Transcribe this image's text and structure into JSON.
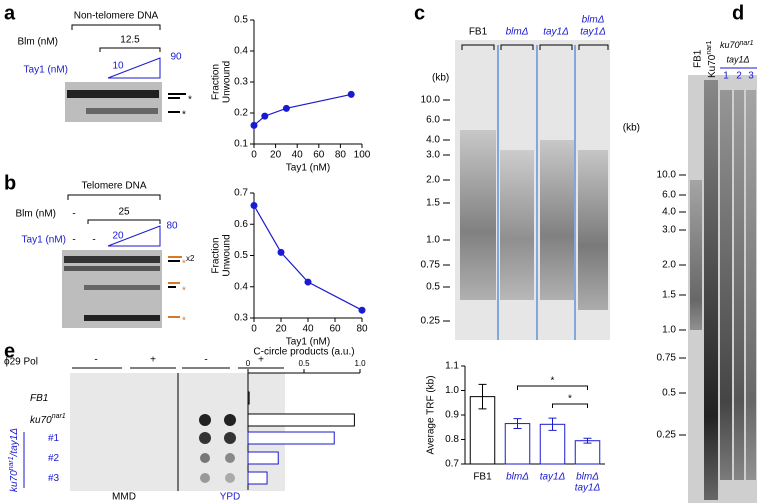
{
  "figure": {
    "panel_labels": [
      "a",
      "b",
      "c",
      "d",
      "e"
    ],
    "a": {
      "substrate": "Non-telomere DNA",
      "blm_label": "Blm (nM)",
      "blm_value": "12.5",
      "tay1_label": "Tay1 (nM)",
      "tay1_low": "10",
      "tay1_high": "90",
      "band_marker": "*"
    },
    "b": {
      "substrate": "Telomere DNA",
      "blm_label": "Blm (nM)",
      "blm_values": [
        "-",
        "25"
      ],
      "tay1_label": "Tay1 (nM)",
      "tay1_values": [
        "-",
        "-"
      ],
      "tay1_low": "20",
      "tay1_high": "80",
      "dup_mark": "x2",
      "band_marker": "*"
    },
    "c": {
      "lanes": [
        [
          "FB1"
        ],
        [
          "blmΔ"
        ],
        [
          "tay1Δ"
        ],
        [
          "blmΔ",
          "tay1Δ"
        ]
      ],
      "kb_unit": "(kb)",
      "size_markers": [
        "10.0",
        "6.0",
        "4.0",
        "3.0",
        "2.0",
        "1.5",
        "1.0",
        "0.75",
        "0.5",
        "0.25"
      ]
    },
    "d": {
      "lane_fb1": "FB1",
      "lane_ku70": [
        "Ku70",
        "nar1"
      ],
      "group": [
        "ku70",
        "nar1"
      ],
      "group_sub": "tay1Δ",
      "lane_numbers": [
        "1",
        "2",
        "3"
      ],
      "kb_unit": "(kb)",
      "size_markers": [
        "10.0",
        "6.0",
        "4.0",
        "3.0",
        "2.0",
        "1.5",
        "1.0",
        "0.75",
        "0.5",
        "0.25"
      ]
    },
    "e": {
      "pol_label": "ϕ29 Pol",
      "pol_states": [
        "-",
        "+",
        "-",
        "+"
      ],
      "media": [
        "MMD",
        "YPD"
      ],
      "strain_group": [
        "ku70",
        "nar1",
        "/tay1Δ"
      ]
    }
  },
  "chart_data": [
    {
      "type": "line",
      "x": [
        0,
        10,
        30,
        90
      ],
      "values": [
        0.16,
        0.19,
        0.215,
        0.26
      ],
      "color": "#1a1ad0",
      "xlabel": "Tay1 (nM)",
      "ylabel": [
        "Fraction",
        "Unwound"
      ],
      "xlim": [
        0,
        100
      ],
      "xticks": [
        0,
        20,
        40,
        60,
        80,
        100
      ],
      "ylim": [
        0.1,
        0.5
      ],
      "yticks": [
        0.1,
        0.2,
        0.3,
        0.4,
        0.5
      ]
    },
    {
      "type": "line",
      "x": [
        0,
        20,
        40,
        80
      ],
      "values": [
        0.66,
        0.51,
        0.415,
        0.325
      ],
      "color": "#1a1ad0",
      "xlabel": "Tay1 (nM)",
      "ylabel": [
        "Fraction",
        "Unwound"
      ],
      "xlim": [
        0,
        80
      ],
      "xticks": [
        0,
        20,
        40,
        60,
        80
      ],
      "ylim": [
        0.3,
        0.7
      ],
      "yticks": [
        0.3,
        0.4,
        0.5,
        0.6,
        0.7
      ]
    },
    {
      "type": "bar",
      "categories": [
        [
          "FB1"
        ],
        [
          "blmΔ"
        ],
        [
          "tay1Δ"
        ],
        [
          "blmΔ",
          "tay1Δ"
        ]
      ],
      "values": [
        0.975,
        0.865,
        0.862,
        0.795
      ],
      "errors": [
        0.05,
        0.02,
        0.025,
        0.01
      ],
      "colors": [
        "#000000",
        "#1a1ad0",
        "#1a1ad0",
        "#1a1ad0"
      ],
      "ylabel": "Average TRF (kb)",
      "ylim": [
        0.7,
        1.1
      ],
      "yticks": [
        0.7,
        0.8,
        0.9,
        {
          "value": 1,
          "label": "1.0"
        },
        1.1
      ],
      "annotations": [
        "*",
        "*"
      ]
    },
    {
      "type": "hbar",
      "title": "C-circle products (a.u.)",
      "categories": [
        [
          "FB1"
        ],
        [
          "ku70",
          "nar1"
        ],
        [
          "#1"
        ],
        [
          "#2"
        ],
        [
          "#3"
        ]
      ],
      "values": [
        0.01,
        0.95,
        0.77,
        0.27,
        0.17
      ],
      "colors": [
        "#000000",
        "#000000",
        "#1a1ad0",
        "#1a1ad0",
        "#1a1ad0"
      ],
      "xlim": [
        0,
        1
      ],
      "xticks": [
        0,
        0.5,
        {
          "value": 1,
          "label": "1.0"
        }
      ]
    }
  ]
}
